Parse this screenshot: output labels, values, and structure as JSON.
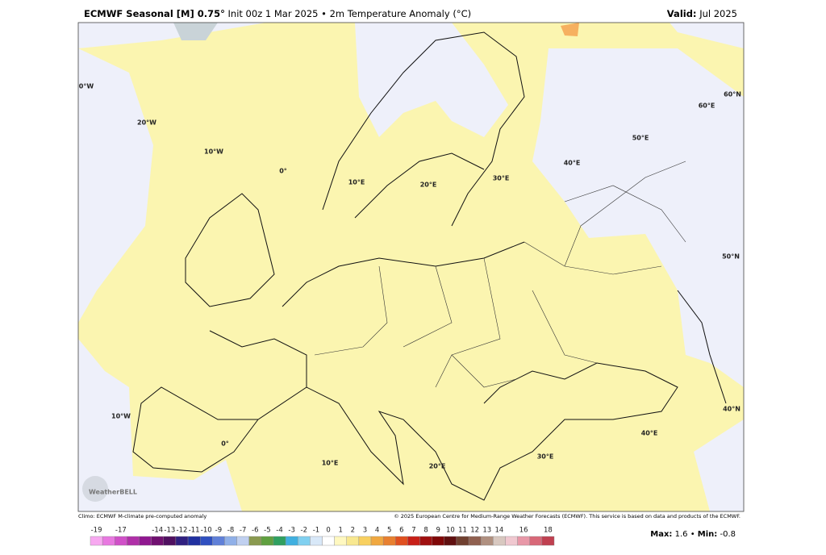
{
  "header": {
    "title_bold": "ECMWF Seasonal [M] 0.75°",
    "title_rest": "Init 00z 1 Mar 2025 • 2m Temperature Anomaly (°C)",
    "valid_label": "Valid:",
    "valid_value": "Jul 2025"
  },
  "map": {
    "grid_labels": [
      "0°W",
      "20°W",
      "10°W",
      "0°",
      "10°E",
      "20°E",
      "30°E",
      "40°E",
      "50°E",
      "60°E",
      "60°N",
      "50°N",
      "40°N",
      "10°W",
      "0°",
      "10°E",
      "20°E",
      "30°E",
      "40°E"
    ],
    "logo": "WeatherBELL"
  },
  "footer": {
    "climo": "Climo: ECMWF M-climate pre-computed anomaly",
    "copyright": "© 2025 European Centre for Medium-Range Weather Forecasts (ECMWF). This service is based on data and products of the ECMWF."
  },
  "colorbar": {
    "levels": [
      -19,
      -18,
      -17,
      -16,
      -15,
      -14,
      -13,
      -12,
      -11,
      -10,
      -9,
      -8,
      -7,
      -6,
      -5,
      -4,
      -3,
      -2,
      -1,
      0,
      1,
      2,
      3,
      4,
      5,
      6,
      7,
      8,
      9,
      10,
      11,
      12,
      13,
      14,
      15,
      16,
      17,
      18
    ],
    "colors": [
      "#f7a8f0",
      "#e878e0",
      "#d050c8",
      "#b030a8",
      "#901890",
      "#701070",
      "#501060",
      "#302080",
      "#2030a0",
      "#3050c0",
      "#6080d8",
      "#90b0e8",
      "#c0d0f0",
      "#8a9a50",
      "#60a040",
      "#30a060",
      "#40b0e0",
      "#80d0f0",
      "#d8e8f8",
      "#ffffff",
      "#fff8c0",
      "#f8e890",
      "#f8d060",
      "#f0a840",
      "#e88030",
      "#e05020",
      "#c82018",
      "#a01010",
      "#800808",
      "#601010",
      "#704030",
      "#906050",
      "#b09080",
      "#d8c8c0",
      "#f0c8d0",
      "#e898a8",
      "#d86878",
      "#c04050"
    ],
    "labels": [
      -19,
      -17,
      -14,
      -13,
      -12,
      -11,
      -10,
      -9,
      -8,
      -7,
      -6,
      -5,
      -4,
      -3,
      -2,
      -1,
      0,
      1,
      2,
      3,
      4,
      5,
      6,
      7,
      8,
      9,
      10,
      11,
      12,
      13,
      14,
      16,
      18
    ]
  },
  "stats": {
    "max_label": "Max:",
    "max": 1.6,
    "separator": "•",
    "min_label": "Min:",
    "min": -0.8
  }
}
